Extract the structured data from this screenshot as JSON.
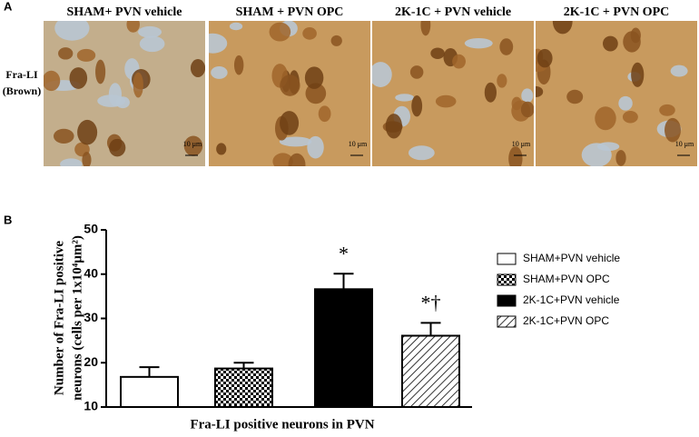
{
  "panels": {
    "a_label": "A",
    "b_label": "B",
    "row_label": [
      "Fra-LI",
      "(Brown)"
    ],
    "images": [
      {
        "title": "SHAM+ PVN vehicle",
        "scale": "10 μm"
      },
      {
        "title": "SHAM + PVN OPC",
        "scale": "10 μm"
      },
      {
        "title": "2K-1C + PVN vehicle",
        "scale": "10 μm"
      },
      {
        "title": "2K-1C + PVN OPC",
        "scale": "10 μm"
      }
    ]
  },
  "chart_data": {
    "type": "bar",
    "ylabel": [
      "Number of Fra-LI positive",
      "neurons (cells per 1x10⁴µm²)"
    ],
    "xlabel": "Fra-LI positive neurons in PVN",
    "ylim": [
      10,
      50
    ],
    "yticks": [
      10,
      20,
      30,
      40,
      50
    ],
    "series": [
      {
        "name": "SHAM+PVN vehicle",
        "color": "#ffffff",
        "pattern": "none",
        "values": [
          16.8
        ],
        "errors": [
          2.2
        ]
      },
      {
        "name": "SHAM+PVN OPC",
        "color": "#000000",
        "pattern": "checker",
        "values": [
          18.7
        ],
        "errors": [
          1.3
        ]
      },
      {
        "name": "2K-1C+PVN vehicle",
        "color": "#000000",
        "pattern": "solid",
        "values": [
          36.6
        ],
        "errors": [
          3.5
        ],
        "annotation": "*"
      },
      {
        "name": "2K-1C+PVN OPC",
        "color": "#000000",
        "pattern": "hatch",
        "values": [
          26.1
        ],
        "errors": [
          2.9
        ],
        "annotation": "*†"
      }
    ]
  }
}
